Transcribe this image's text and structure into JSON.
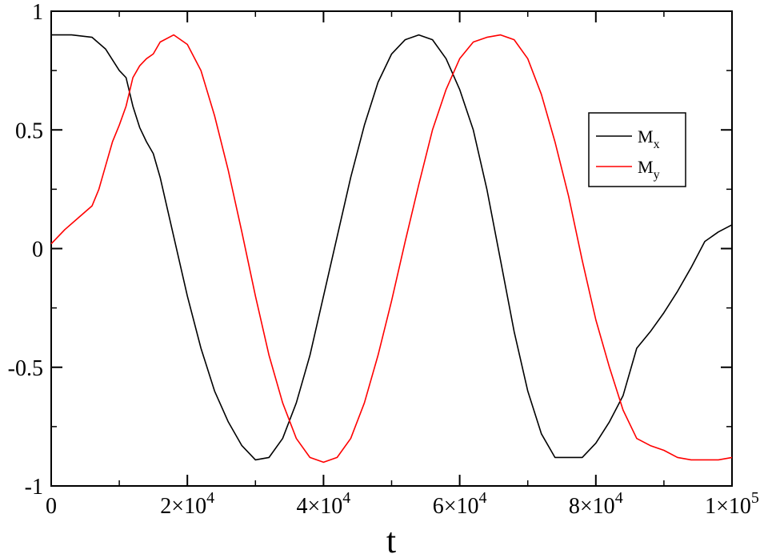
{
  "chart_data": {
    "type": "line",
    "title": "",
    "xlabel": "t",
    "ylabel": "",
    "xlim": [
      0,
      100000
    ],
    "ylim": [
      -1,
      1
    ],
    "grid": false,
    "legend_placement": "right",
    "x_ticks": [
      {
        "value": 0,
        "label": "0"
      },
      {
        "value": 20000,
        "label": "2×10",
        "exp": "4"
      },
      {
        "value": 40000,
        "label": "4×10",
        "exp": "4"
      },
      {
        "value": 60000,
        "label": "6×10",
        "exp": "4"
      },
      {
        "value": 80000,
        "label": "8×10",
        "exp": "4"
      },
      {
        "value": 100000,
        "label": "1×10",
        "exp": "5"
      }
    ],
    "y_ticks": [
      {
        "value": -1,
        "label": "-1"
      },
      {
        "value": -0.5,
        "label": "-0.5"
      },
      {
        "value": 0,
        "label": "0"
      },
      {
        "value": 0.5,
        "label": "0.5"
      },
      {
        "value": 1,
        "label": "1"
      }
    ],
    "series": [
      {
        "name": "M",
        "name_sub": "x",
        "color": "#000000",
        "x": [
          0,
          3000,
          6000,
          8000,
          10000,
          11000,
          12000,
          13000,
          14000,
          15000,
          16000,
          18000,
          20000,
          22000,
          24000,
          26000,
          28000,
          30000,
          32000,
          34000,
          36000,
          38000,
          40000,
          42000,
          44000,
          46000,
          48000,
          50000,
          52000,
          54000,
          56000,
          58000,
          60000,
          62000,
          64000,
          66000,
          68000,
          70000,
          72000,
          74000,
          76000,
          78000,
          80000,
          82000,
          84000,
          86000,
          88000,
          90000,
          92000,
          94000,
          96000,
          98000,
          100000
        ],
        "values": [
          0.9,
          0.9,
          0.89,
          0.84,
          0.75,
          0.72,
          0.6,
          0.51,
          0.45,
          0.4,
          0.3,
          0.05,
          -0.2,
          -0.42,
          -0.6,
          -0.73,
          -0.83,
          -0.89,
          -0.88,
          -0.8,
          -0.65,
          -0.45,
          -0.2,
          0.05,
          0.3,
          0.52,
          0.7,
          0.82,
          0.88,
          0.9,
          0.88,
          0.8,
          0.67,
          0.5,
          0.25,
          -0.05,
          -0.35,
          -0.6,
          -0.78,
          -0.88,
          -0.88,
          -0.88,
          -0.82,
          -0.73,
          -0.62,
          -0.42,
          -0.35,
          -0.27,
          -0.18,
          -0.08,
          0.03,
          0.07,
          0.1
        ]
      },
      {
        "name": "M",
        "name_sub": "y",
        "color": "#ff0000",
        "x": [
          0,
          2000,
          4000,
          6000,
          7000,
          8000,
          9000,
          10000,
          11000,
          12000,
          13000,
          14000,
          15000,
          16000,
          18000,
          20000,
          22000,
          24000,
          26000,
          28000,
          30000,
          32000,
          34000,
          36000,
          38000,
          40000,
          42000,
          44000,
          46000,
          48000,
          50000,
          52000,
          54000,
          56000,
          58000,
          60000,
          62000,
          64000,
          66000,
          68000,
          70000,
          72000,
          74000,
          76000,
          78000,
          80000,
          82000,
          84000,
          86000,
          88000,
          90000,
          92000,
          94000,
          96000,
          98000,
          100000
        ],
        "values": [
          0.02,
          0.08,
          0.13,
          0.18,
          0.25,
          0.35,
          0.45,
          0.52,
          0.6,
          0.72,
          0.77,
          0.8,
          0.82,
          0.87,
          0.9,
          0.86,
          0.75,
          0.56,
          0.33,
          0.07,
          -0.2,
          -0.45,
          -0.65,
          -0.8,
          -0.88,
          -0.9,
          -0.88,
          -0.8,
          -0.65,
          -0.45,
          -0.22,
          0.03,
          0.27,
          0.5,
          0.67,
          0.8,
          0.87,
          0.89,
          0.9,
          0.88,
          0.8,
          0.65,
          0.45,
          0.22,
          -0.05,
          -0.3,
          -0.5,
          -0.68,
          -0.8,
          -0.83,
          -0.85,
          -0.88,
          -0.89,
          -0.89,
          -0.89,
          -0.88
        ]
      }
    ]
  }
}
